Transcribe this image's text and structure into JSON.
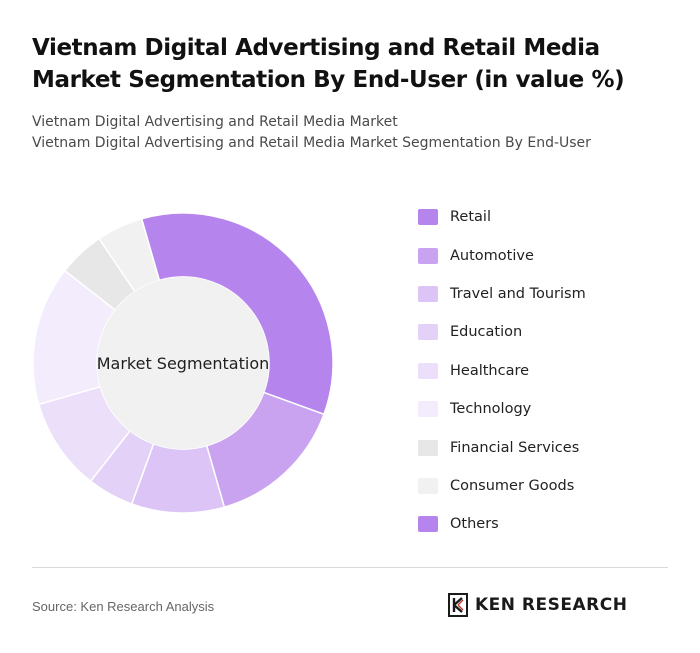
{
  "header": {
    "title": "Vietnam Digital Advertising and Retail Media Market Segmentation By End-User (in value %)",
    "subtitle_1": "Vietnam Digital Advertising and Retail Media Market",
    "subtitle_2": "Vietnam Digital Advertising and Retail Media Market Segmentation By End-User"
  },
  "chart_data": {
    "type": "pie",
    "center_label": "Market Segmentation",
    "categories": [
      "Retail",
      "Automotive",
      "Travel and Tourism",
      "Education",
      "Healthcare",
      "Technology",
      "Financial Services",
      "Consumer Goods",
      "Others"
    ],
    "values": [
      35,
      15,
      10,
      5,
      10,
      15,
      5,
      5,
      0
    ],
    "colors": [
      "#b584ec",
      "#c9a3f0",
      "#dcc4f6",
      "#e4d1f8",
      "#ecdffa",
      "#f3ecfc",
      "#e7e7e7",
      "#f1f1f1",
      "#b584ec"
    ],
    "legend_position": "right"
  },
  "footer": {
    "source": "Source: Ken Research Analysis",
    "brand": "KEN RESEARCH"
  }
}
